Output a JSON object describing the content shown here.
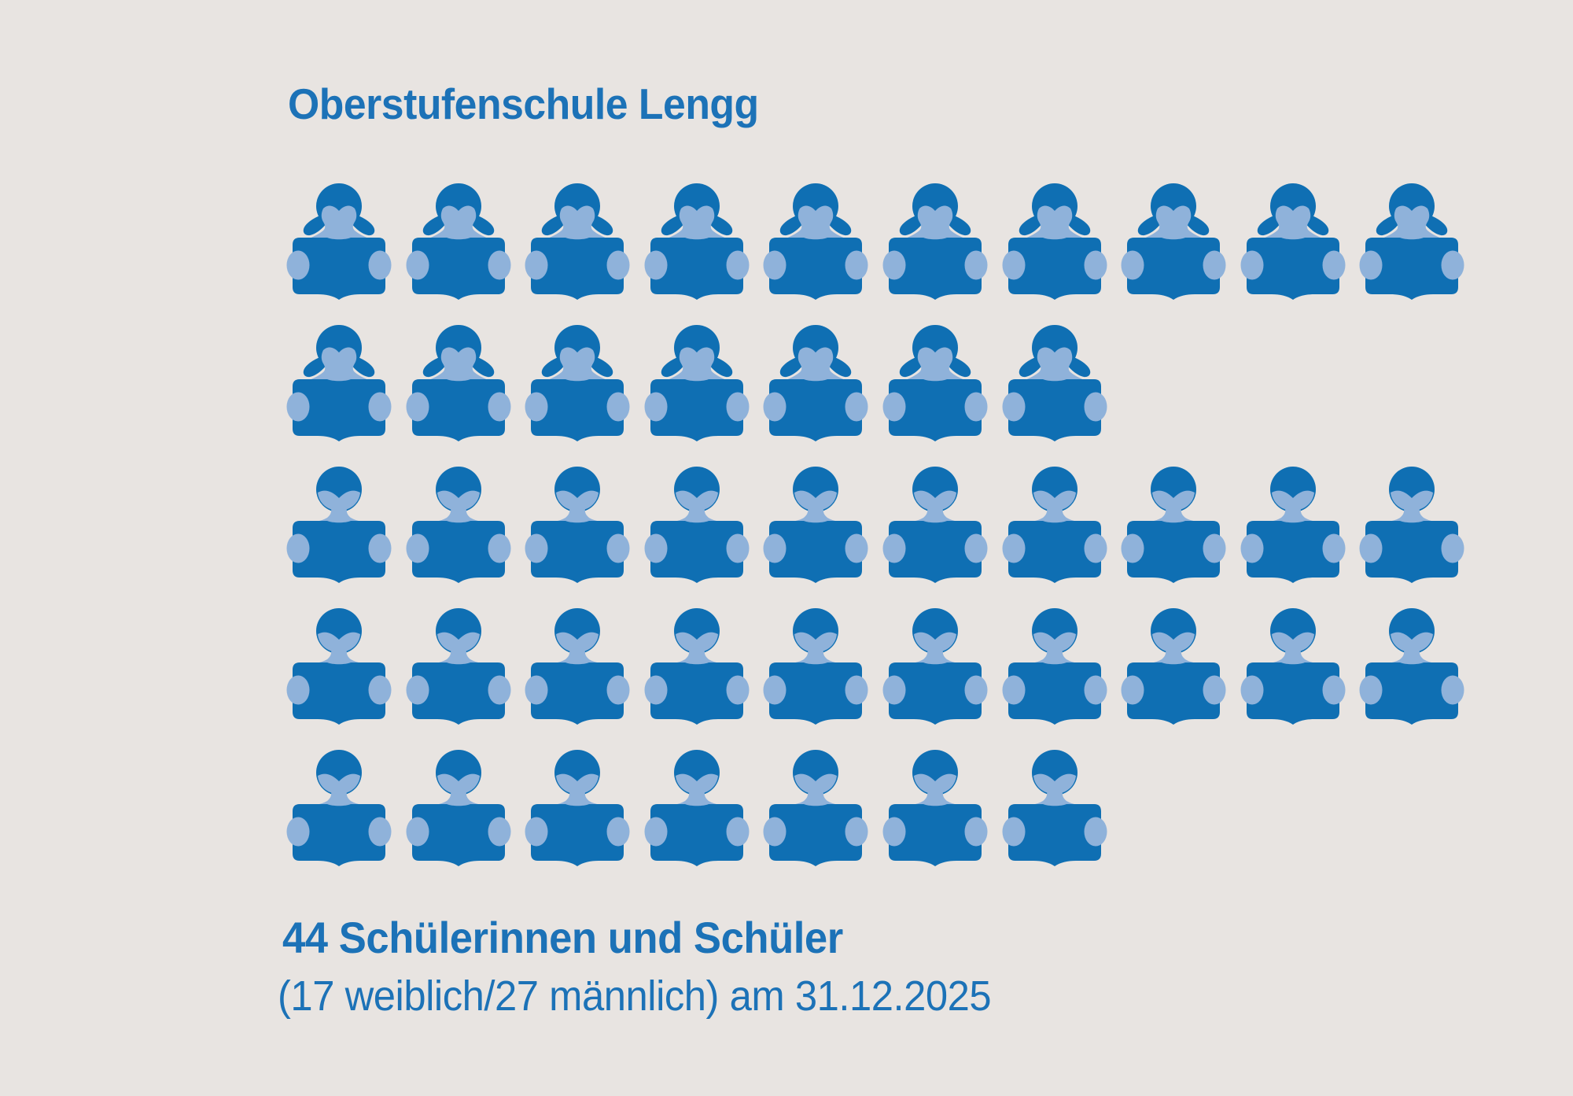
{
  "title": "Oberstufenschule Lengg",
  "caption": {
    "line1": "44 Schülerinnen und Schüler",
    "line2": "(17 weiblich/27 männlich) am 31.12.2025"
  },
  "colors": {
    "background": "#e8e4e1",
    "icon_dark": "#0f6fb3",
    "icon_light": "#8fb2da",
    "text": "#1c72b7"
  },
  "chart_data": {
    "type": "pictogram",
    "title": "Oberstufenschule Lengg",
    "unit_value": 1,
    "total": 44,
    "total_label": "44 Schülerinnen und Schüler",
    "detail_label": "(17 weiblich/27 männlich) am 31.12.2025",
    "as_of_date": "31.12.2025",
    "max_icons_per_row": 10,
    "legend_position": "none",
    "series": [
      {
        "name": "weiblich",
        "value": 17,
        "icon": "girl-reading-book-icon"
      },
      {
        "name": "männlich",
        "value": 27,
        "icon": "boy-reading-book-icon"
      }
    ],
    "icon_rows": [
      {
        "label": "weiblich",
        "symbol": "female",
        "count": 10
      },
      {
        "label": "weiblich",
        "symbol": "female",
        "count": 7
      },
      {
        "label": "männlich",
        "symbol": "male",
        "count": 10
      },
      {
        "label": "männlich",
        "symbol": "male",
        "count": 10
      },
      {
        "label": "männlich",
        "symbol": "male",
        "count": 7
      }
    ]
  }
}
